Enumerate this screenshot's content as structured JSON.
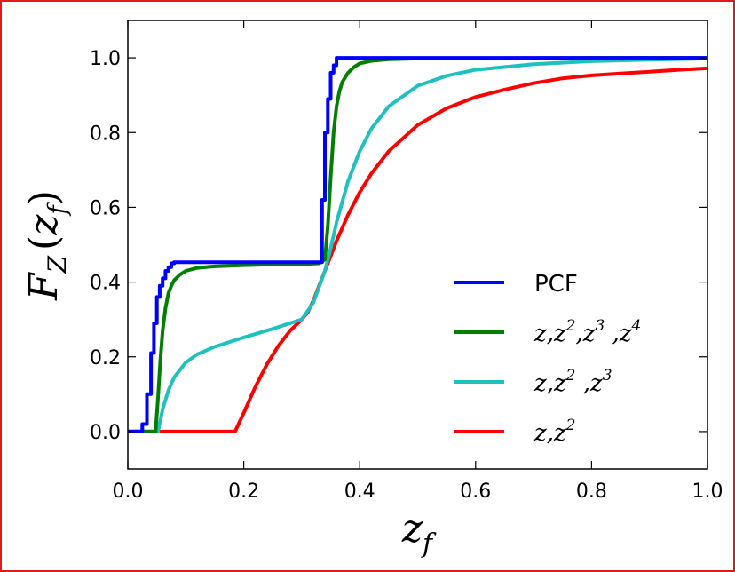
{
  "chart_data": {
    "type": "line",
    "title": "",
    "xlabel": "z_f",
    "ylabel": "F_Z(z_f)",
    "xlim": [
      0.0,
      1.0
    ],
    "ylim": [
      -0.1,
      1.1
    ],
    "xticks": [
      "0.0",
      "0.2",
      "0.4",
      "0.6",
      "0.8",
      "1.0"
    ],
    "yticks": [
      "0.0",
      "0.2",
      "0.4",
      "0.6",
      "0.8",
      "1.0"
    ],
    "grid": false,
    "legend_position": "lower-right",
    "series": [
      {
        "name": "PCF",
        "color": "#0000ff",
        "x": [
          0.0,
          0.025,
          0.025,
          0.033,
          0.033,
          0.04,
          0.04,
          0.045,
          0.045,
          0.05,
          0.05,
          0.055,
          0.055,
          0.06,
          0.06,
          0.065,
          0.065,
          0.07,
          0.07,
          0.075,
          0.075,
          0.08,
          0.08,
          0.335,
          0.335,
          0.34,
          0.34,
          0.345,
          0.345,
          0.35,
          0.35,
          0.355,
          0.355,
          0.36,
          0.36,
          1.0
        ],
        "y": [
          0.0,
          0.0,
          0.02,
          0.02,
          0.1,
          0.1,
          0.21,
          0.21,
          0.29,
          0.29,
          0.36,
          0.36,
          0.39,
          0.39,
          0.41,
          0.41,
          0.43,
          0.43,
          0.44,
          0.44,
          0.45,
          0.45,
          0.453,
          0.453,
          0.62,
          0.62,
          0.8,
          0.8,
          0.89,
          0.89,
          0.96,
          0.96,
          0.98,
          0.98,
          1.0,
          1.0
        ]
      },
      {
        "name": "z,z^2,z^3,z^4",
        "color": "#008000",
        "x": [
          0.0,
          0.048,
          0.052,
          0.056,
          0.06,
          0.065,
          0.07,
          0.075,
          0.08,
          0.09,
          0.1,
          0.12,
          0.15,
          0.2,
          0.25,
          0.3,
          0.33,
          0.34,
          0.345,
          0.35,
          0.355,
          0.36,
          0.365,
          0.37,
          0.38,
          0.39,
          0.4,
          0.42,
          0.45,
          0.5,
          0.6,
          0.8,
          1.0
        ],
        "y": [
          0.0,
          0.0,
          0.09,
          0.19,
          0.27,
          0.33,
          0.37,
          0.39,
          0.405,
          0.42,
          0.43,
          0.438,
          0.442,
          0.445,
          0.447,
          0.448,
          0.45,
          0.46,
          0.55,
          0.68,
          0.8,
          0.87,
          0.91,
          0.935,
          0.96,
          0.975,
          0.985,
          0.992,
          0.996,
          0.998,
          0.999,
          1.0,
          1.0
        ]
      },
      {
        "name": "z,z^2,z^3",
        "color": "#20c0c0",
        "x": [
          0.0,
          0.052,
          0.06,
          0.07,
          0.08,
          0.1,
          0.12,
          0.15,
          0.2,
          0.25,
          0.3,
          0.32,
          0.34,
          0.35,
          0.36,
          0.38,
          0.4,
          0.42,
          0.45,
          0.5,
          0.55,
          0.6,
          0.7,
          0.8,
          0.9,
          1.0
        ],
        "y": [
          0.0,
          0.0,
          0.06,
          0.11,
          0.145,
          0.185,
          0.207,
          0.227,
          0.252,
          0.275,
          0.3,
          0.345,
          0.43,
          0.49,
          0.56,
          0.67,
          0.75,
          0.81,
          0.87,
          0.925,
          0.952,
          0.968,
          0.983,
          0.991,
          0.995,
          0.998
        ]
      },
      {
        "name": "z,z^2",
        "color": "#ff0000",
        "x": [
          0.0,
          0.185,
          0.2,
          0.22,
          0.24,
          0.26,
          0.28,
          0.3,
          0.31,
          0.32,
          0.34,
          0.36,
          0.38,
          0.4,
          0.42,
          0.45,
          0.5,
          0.55,
          0.6,
          0.65,
          0.7,
          0.75,
          0.8,
          0.85,
          0.9,
          0.95,
          1.0
        ],
        "y": [
          0.0,
          0.0,
          0.05,
          0.12,
          0.18,
          0.23,
          0.27,
          0.3,
          0.318,
          0.35,
          0.43,
          0.51,
          0.58,
          0.64,
          0.69,
          0.75,
          0.82,
          0.865,
          0.895,
          0.915,
          0.932,
          0.945,
          0.953,
          0.958,
          0.963,
          0.968,
          0.972
        ]
      }
    ]
  },
  "legend": [
    {
      "label": "PCF",
      "math": false
    },
    {
      "base": "z,z",
      "sups": [
        [
          "2",
          ",z"
        ],
        [
          "3",
          " ,z"
        ],
        [
          "4",
          ""
        ]
      ],
      "math": true
    },
    {
      "base": "z,z",
      "sups": [
        [
          "2",
          " ,z"
        ],
        [
          "3",
          ""
        ]
      ],
      "math": true
    },
    {
      "base": "z,z",
      "sups": [
        [
          "2",
          ""
        ]
      ],
      "math": true
    }
  ],
  "axis_text": {
    "x_main": "z",
    "x_sub": "f",
    "y_main": "F",
    "y_sub": "Z",
    "y_open": "(",
    "y_inner": "z",
    "y_inner_sub": "f",
    "y_close": ")"
  }
}
